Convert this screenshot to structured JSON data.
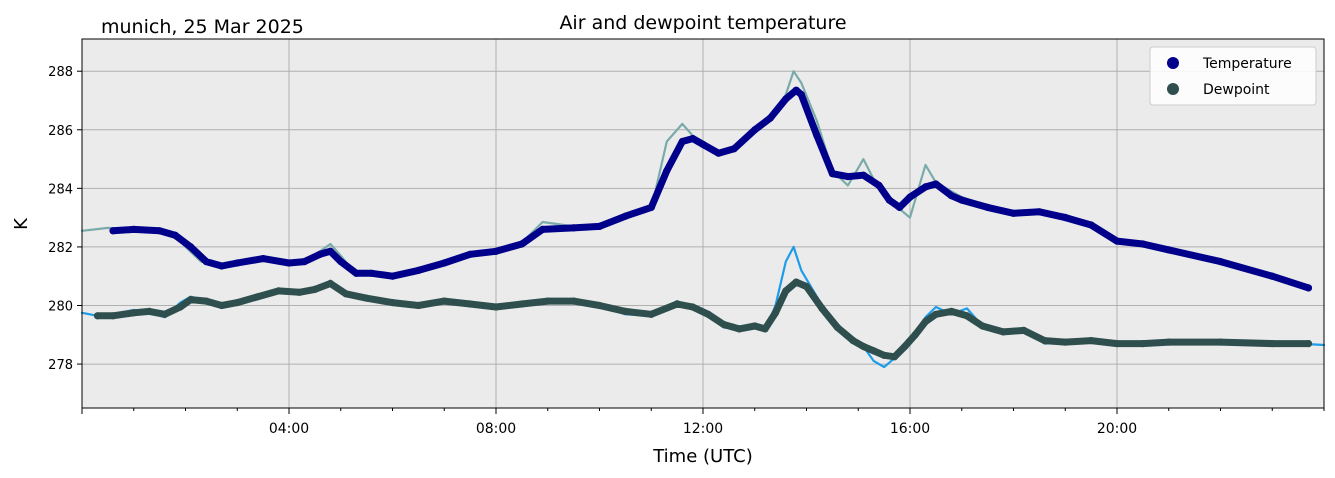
{
  "chart_data": {
    "type": "line",
    "title": "Air and dewpoint temperature",
    "subtitle": "munich, 25 Mar 2025",
    "xlabel": "Time (UTC)",
    "ylabel": "K",
    "x_range_hours": [
      0,
      24
    ],
    "xlim": [
      0,
      24
    ],
    "ylim": [
      276.5,
      289.1
    ],
    "x_ticks": [
      {
        "hour": 4,
        "label": "04:00"
      },
      {
        "hour": 8,
        "label": "08:00"
      },
      {
        "hour": 12,
        "label": "12:00"
      },
      {
        "hour": 16,
        "label": "16:00"
      },
      {
        "hour": 20,
        "label": "20:00"
      }
    ],
    "y_ticks": [
      {
        "value": 278,
        "label": "278"
      },
      {
        "value": 280,
        "label": "280"
      },
      {
        "value": 282,
        "label": "282"
      },
      {
        "value": 284,
        "label": "284"
      },
      {
        "value": 286,
        "label": "286"
      },
      {
        "value": 288,
        "label": "288"
      }
    ],
    "grid": true,
    "legend_position": "top-right",
    "background_color": "#ebebeb",
    "series": [
      {
        "name": "Temperature",
        "smooth_color": "#00008b",
        "raw_color": "#7aabab",
        "raw": {
          "x": [
            0,
            0.25,
            0.5,
            1.0,
            1.5,
            1.8,
            2.0,
            2.3,
            2.6,
            3.0,
            3.5,
            4.0,
            4.3,
            4.6,
            4.8,
            5.0,
            5.3,
            5.6,
            6.0,
            6.5,
            7.0,
            7.5,
            8.0,
            8.5,
            8.9,
            9.5,
            10.0,
            10.5,
            11.0,
            11.3,
            11.6,
            11.8,
            12.0,
            12.3,
            12.6,
            13.0,
            13.3,
            13.6,
            13.75,
            13.9,
            14.2,
            14.5,
            14.8,
            15.0,
            15.1,
            15.3,
            15.6,
            15.8,
            16.0,
            16.2,
            16.3,
            16.5,
            16.8,
            17.0,
            17.5,
            18.0,
            18.5,
            19.0,
            19.5,
            20.0,
            20.5,
            21.0,
            22.0,
            23.0,
            23.7
          ],
          "y": [
            282.55,
            282.6,
            282.65,
            282.6,
            282.55,
            282.4,
            282.0,
            281.5,
            281.35,
            281.45,
            281.6,
            281.4,
            281.55,
            281.85,
            282.1,
            281.7,
            281.05,
            281.1,
            281.0,
            281.2,
            281.4,
            281.75,
            281.85,
            282.15,
            282.85,
            282.7,
            282.7,
            283.1,
            283.3,
            285.6,
            286.2,
            285.8,
            285.6,
            285.2,
            285.3,
            286.1,
            286.4,
            287.2,
            288.0,
            287.6,
            286.3,
            284.6,
            284.1,
            284.7,
            285.0,
            284.3,
            283.6,
            283.3,
            283.0,
            284.2,
            284.8,
            284.2,
            283.9,
            283.7,
            283.4,
            283.15,
            283.2,
            283.1,
            282.8,
            282.2,
            282.1,
            281.9,
            281.5,
            281.0,
            280.6
          ]
        },
        "smooth": {
          "x": [
            0.6,
            1.0,
            1.5,
            1.8,
            2.1,
            2.4,
            2.7,
            3.0,
            3.5,
            4.0,
            4.3,
            4.6,
            4.8,
            5.0,
            5.3,
            5.6,
            6.0,
            6.5,
            7.0,
            7.5,
            8.0,
            8.5,
            8.9,
            9.5,
            10.0,
            10.5,
            11.0,
            11.3,
            11.6,
            11.8,
            12.0,
            12.3,
            12.6,
            13.0,
            13.3,
            13.6,
            13.8,
            13.9,
            14.2,
            14.5,
            14.8,
            15.1,
            15.4,
            15.6,
            15.8,
            16.0,
            16.3,
            16.5,
            16.8,
            17.0,
            17.5,
            18.0,
            18.5,
            19.0,
            19.5,
            20.0,
            20.5,
            21.0,
            22.0,
            23.0,
            23.7
          ],
          "y": [
            282.55,
            282.6,
            282.55,
            282.4,
            282.0,
            281.5,
            281.35,
            281.45,
            281.6,
            281.45,
            281.5,
            281.75,
            281.85,
            281.5,
            281.1,
            281.1,
            281.0,
            281.2,
            281.45,
            281.75,
            281.85,
            282.1,
            282.6,
            282.65,
            282.7,
            283.05,
            283.35,
            284.6,
            285.6,
            285.7,
            285.5,
            285.2,
            285.35,
            286.0,
            286.4,
            287.05,
            287.35,
            287.2,
            285.8,
            284.5,
            284.4,
            284.45,
            284.1,
            283.6,
            283.35,
            283.7,
            284.05,
            284.15,
            283.75,
            283.6,
            283.35,
            283.15,
            283.2,
            283.0,
            282.75,
            282.2,
            282.1,
            281.9,
            281.5,
            281.0,
            280.6
          ]
        }
      },
      {
        "name": "Dewpoint",
        "smooth_color": "#2f4f4f",
        "raw_color": "#1e9ce8",
        "raw": {
          "x": [
            0,
            0.3,
            0.6,
            1.0,
            1.3,
            1.6,
            1.9,
            2.1,
            2.4,
            2.7,
            3.0,
            3.4,
            3.8,
            4.2,
            4.5,
            4.8,
            5.1,
            5.5,
            6.0,
            6.5,
            7.0,
            7.5,
            8.0,
            8.5,
            9.0,
            9.5,
            10.0,
            10.5,
            11.0,
            11.5,
            11.8,
            12.1,
            12.4,
            12.7,
            13.0,
            13.2,
            13.4,
            13.6,
            13.75,
            13.9,
            14.1,
            14.3,
            14.6,
            14.9,
            15.1,
            15.3,
            15.5,
            15.7,
            15.9,
            16.1,
            16.3,
            16.5,
            16.8,
            17.1,
            17.4,
            17.8,
            18.2,
            18.6,
            19.0,
            19.5,
            20.0,
            20.5,
            21.0,
            22.0,
            23.0,
            24.0
          ],
          "y": [
            279.75,
            279.65,
            279.7,
            279.85,
            279.75,
            279.6,
            280.1,
            280.3,
            280.15,
            280.0,
            280.1,
            280.35,
            280.5,
            280.4,
            280.5,
            280.85,
            280.4,
            280.25,
            280.1,
            280.0,
            280.2,
            280.05,
            279.95,
            280.1,
            280.2,
            280.15,
            280.0,
            279.7,
            279.65,
            280.15,
            279.95,
            279.65,
            279.25,
            279.2,
            279.35,
            279.15,
            280.0,
            281.5,
            282.0,
            281.2,
            280.6,
            280.0,
            279.3,
            278.8,
            278.6,
            278.1,
            277.9,
            278.2,
            278.5,
            279.1,
            279.6,
            279.95,
            279.7,
            279.9,
            279.3,
            279.05,
            279.2,
            278.7,
            278.75,
            278.85,
            278.7,
            278.75,
            278.8,
            278.8,
            278.75,
            278.65
          ]
        },
        "smooth": {
          "x": [
            0.3,
            0.6,
            1.0,
            1.3,
            1.6,
            1.9,
            2.1,
            2.4,
            2.7,
            3.0,
            3.4,
            3.8,
            4.2,
            4.5,
            4.8,
            5.1,
            5.5,
            6.0,
            6.5,
            7.0,
            7.5,
            8.0,
            8.5,
            9.0,
            9.5,
            10.0,
            10.5,
            11.0,
            11.5,
            11.8,
            12.1,
            12.4,
            12.7,
            13.0,
            13.2,
            13.4,
            13.6,
            13.8,
            14.0,
            14.3,
            14.6,
            14.9,
            15.1,
            15.3,
            15.5,
            15.7,
            15.9,
            16.1,
            16.3,
            16.5,
            16.8,
            17.1,
            17.4,
            17.8,
            18.2,
            18.6,
            19.0,
            19.5,
            20.0,
            20.5,
            21.0,
            22.0,
            23.0,
            23.7
          ],
          "y": [
            279.65,
            279.65,
            279.75,
            279.8,
            279.7,
            279.95,
            280.2,
            280.15,
            280.0,
            280.1,
            280.3,
            280.5,
            280.45,
            280.55,
            280.75,
            280.4,
            280.25,
            280.1,
            280.0,
            280.15,
            280.05,
            279.95,
            280.05,
            280.15,
            280.15,
            280.0,
            279.8,
            279.7,
            280.05,
            279.95,
            279.7,
            279.35,
            279.2,
            279.3,
            279.2,
            279.75,
            280.5,
            280.8,
            280.65,
            279.9,
            279.25,
            278.8,
            278.6,
            278.45,
            278.3,
            278.25,
            278.6,
            279.0,
            279.45,
            279.7,
            279.8,
            279.65,
            279.3,
            279.1,
            279.15,
            278.8,
            278.75,
            278.8,
            278.7,
            278.7,
            278.75,
            278.75,
            278.7,
            278.7
          ]
        }
      }
    ]
  }
}
